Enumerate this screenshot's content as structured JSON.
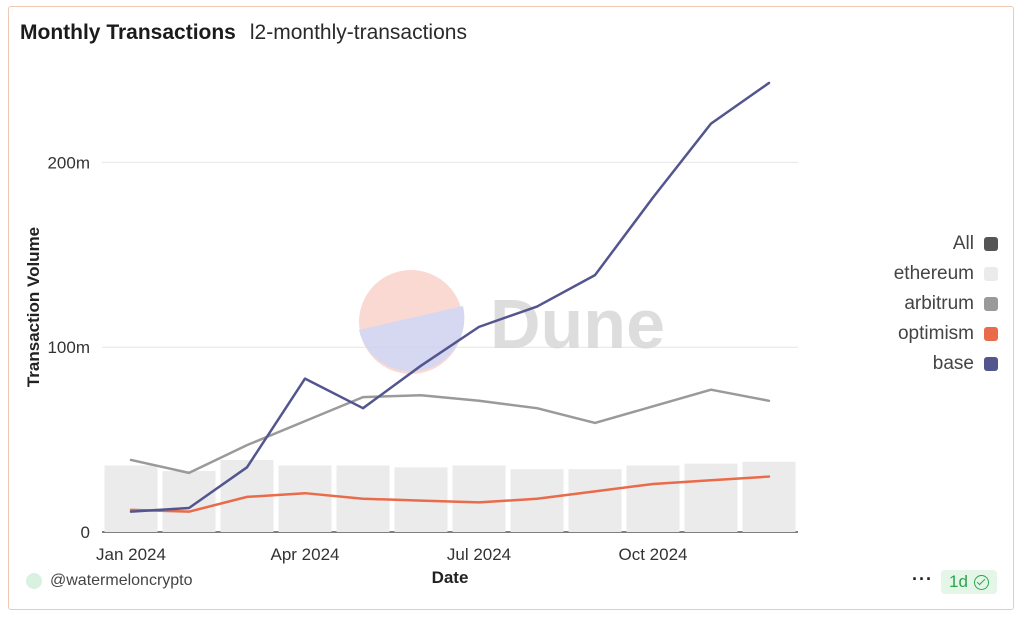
{
  "header": {
    "title": "Monthly Transactions",
    "subtitle": "l2-monthly-transactions"
  },
  "chart_data": {
    "type": "line",
    "xlabel": "Date",
    "ylabel": "Transaction Volume",
    "ylim": [
      0,
      250
    ],
    "yticks": [
      {
        "v": 0,
        "label": "0"
      },
      {
        "v": 100,
        "label": "100m"
      },
      {
        "v": 200,
        "label": "200m"
      }
    ],
    "months": [
      "2024-01",
      "2024-02",
      "2024-03",
      "2024-04",
      "2024-05",
      "2024-06",
      "2024-07",
      "2024-08",
      "2024-09",
      "2024-10",
      "2024-11",
      "2024-12"
    ],
    "xticks": [
      {
        "i": 0,
        "label": "Jan 2024"
      },
      {
        "i": 3,
        "label": "Apr 2024"
      },
      {
        "i": 6,
        "label": "Jul 2024"
      },
      {
        "i": 9,
        "label": "Oct 2024"
      }
    ],
    "grid": true,
    "legend_position": "right",
    "series": [
      {
        "name": "ethereum",
        "type": "bar",
        "color": "#ebebeb",
        "values": [
          36,
          33,
          39,
          36,
          36,
          35,
          36,
          34,
          34,
          36,
          37,
          38
        ]
      },
      {
        "name": "arbitrum",
        "type": "line",
        "color": "#9a9a9a",
        "values": [
          39,
          32,
          47,
          60,
          73,
          74,
          71,
          67,
          59,
          68,
          77,
          71
        ]
      },
      {
        "name": "optimism",
        "type": "line",
        "color": "#e96b4a",
        "values": [
          12,
          11,
          19,
          21,
          18,
          17,
          16,
          18,
          22,
          26,
          28,
          30
        ]
      },
      {
        "name": "base",
        "type": "line",
        "color": "#53558f",
        "values": [
          11,
          13,
          35,
          83,
          67,
          90,
          111,
          122,
          139,
          181,
          221,
          243
        ]
      }
    ]
  },
  "legend": [
    {
      "label": "All",
      "color": "#555555"
    },
    {
      "label": "ethereum",
      "color": "#ebebeb"
    },
    {
      "label": "arbitrum",
      "color": "#9a9a9a"
    },
    {
      "label": "optimism",
      "color": "#e96b4a"
    },
    {
      "label": "base",
      "color": "#53558f"
    }
  ],
  "watermark": "Dune",
  "footer": {
    "user": "@watermeloncrypto",
    "more": "···",
    "freshness": "1d"
  }
}
